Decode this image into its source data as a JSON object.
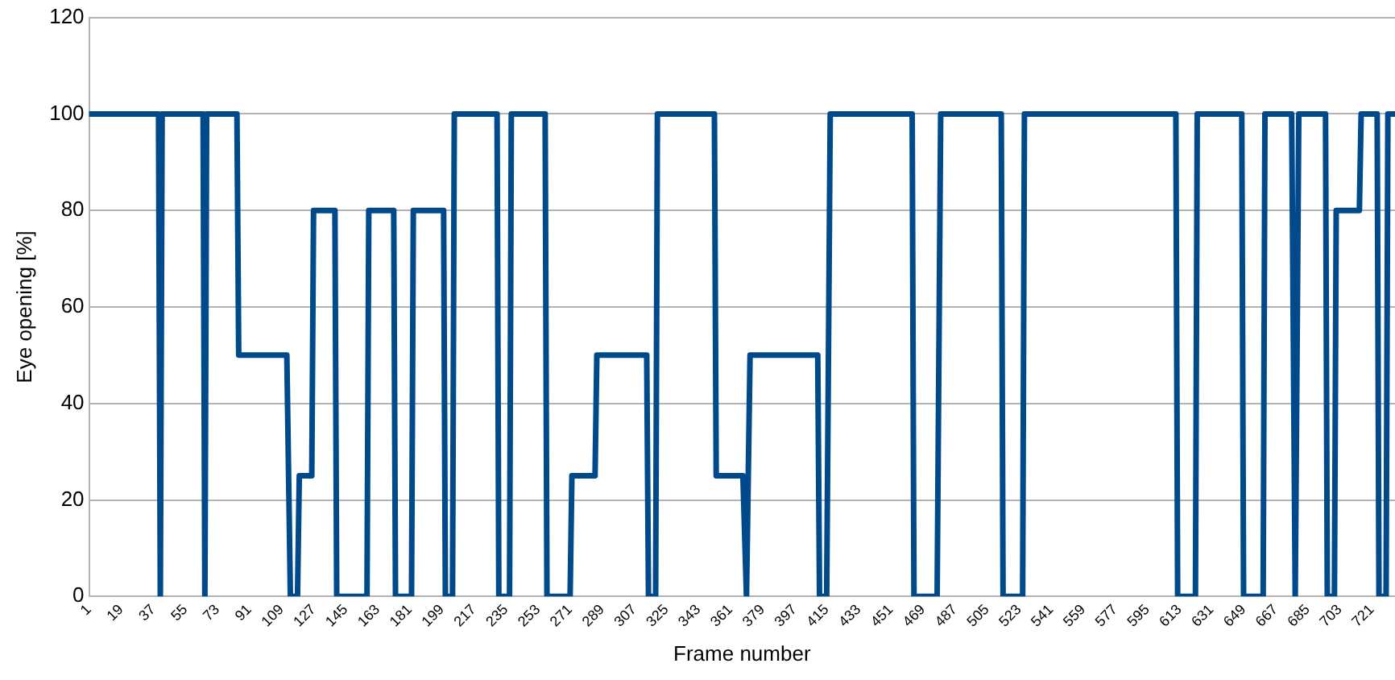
{
  "chart_data": {
    "type": "line",
    "xlabel": "Frame number",
    "ylabel": "Eye opening [%]",
    "xlim": [
      1,
      734
    ],
    "xticks": [
      1,
      19,
      37,
      55,
      73,
      91,
      109,
      127,
      145,
      163,
      181,
      199,
      217,
      235,
      253,
      271,
      289,
      307,
      325,
      343,
      361,
      379,
      397,
      415,
      433,
      451,
      469,
      487,
      505,
      523,
      541,
      559,
      577,
      595,
      613,
      631,
      649,
      667,
      685,
      703,
      721
    ],
    "ylim": [
      0,
      120
    ],
    "yticks": [
      0,
      20,
      40,
      60,
      80,
      100,
      120
    ],
    "grid": "y",
    "marker": "none",
    "line_style": "solid",
    "series": [
      {
        "color": "#004a8c",
        "x": [
          1,
          40,
          41,
          42,
          65,
          66,
          67,
          84,
          85,
          112,
          114,
          118,
          119,
          126,
          127,
          139,
          140,
          157,
          158,
          172,
          173,
          182,
          183,
          200,
          201,
          205,
          206,
          230,
          231,
          237,
          238,
          257,
          258,
          271,
          272,
          285,
          286,
          314,
          315,
          319,
          320,
          352,
          353,
          368,
          370,
          372,
          410,
          411,
          415,
          417,
          463,
          464,
          477,
          479,
          513,
          514,
          525,
          526,
          611,
          612,
          622,
          623,
          648,
          649,
          660,
          661,
          676,
          678,
          680,
          695,
          696,
          700,
          701,
          714,
          715,
          724,
          725,
          729,
          730,
          734
        ],
        "values": [
          100,
          100,
          0,
          100,
          100,
          0,
          100,
          100,
          50,
          50,
          0,
          0,
          25,
          25,
          80,
          80,
          0,
          0,
          80,
          80,
          0,
          0,
          80,
          80,
          0,
          0,
          100,
          100,
          0,
          0,
          100,
          100,
          0,
          0,
          25,
          25,
          50,
          50,
          0,
          0,
          100,
          100,
          25,
          25,
          0,
          50,
          50,
          0,
          0,
          100,
          100,
          0,
          0,
          100,
          100,
          0,
          0,
          100,
          100,
          0,
          0,
          100,
          100,
          0,
          0,
          100,
          100,
          0,
          100,
          100,
          0,
          0,
          80,
          80,
          100,
          100,
          0,
          0,
          100,
          100
        ]
      }
    ]
  }
}
